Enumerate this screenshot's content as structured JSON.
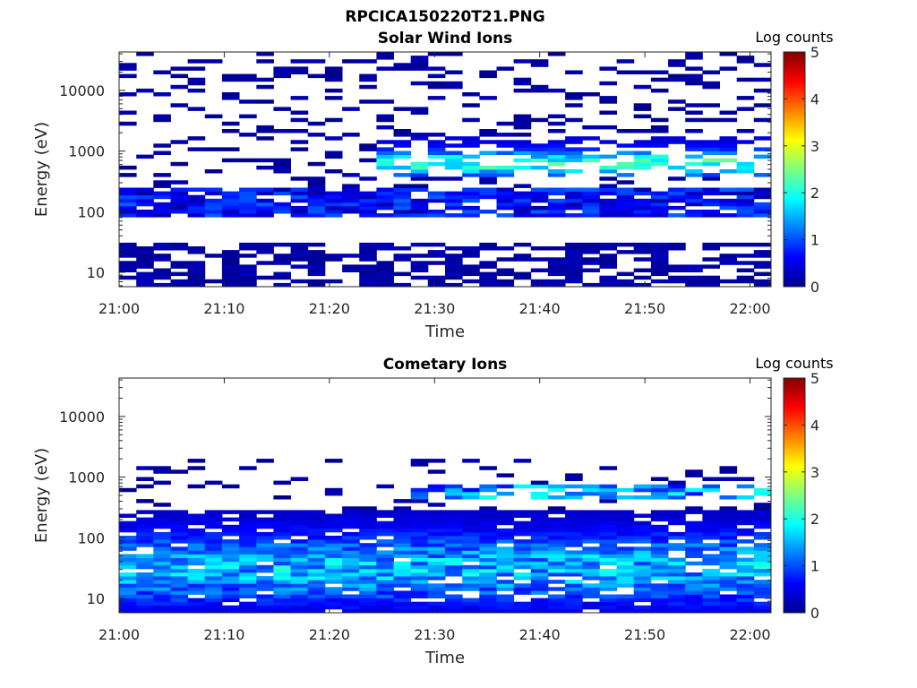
{
  "figure": {
    "title": "RPCICA150220T21.PNG"
  },
  "colormap": "jet",
  "chart_data": [
    {
      "type": "heatmap",
      "title": "Solar Wind Ions",
      "xlabel": "Time",
      "ylabel": "Energy (eV)",
      "x_ticks": [
        "21:00",
        "21:10",
        "21:20",
        "21:30",
        "21:40",
        "21:50",
        "22:00"
      ],
      "x_range_minutes": [
        0,
        62
      ],
      "y_scale": "log",
      "y_ticks": [
        "10",
        "100",
        "1000",
        "10000"
      ],
      "ylim": [
        5.8,
        43000
      ],
      "colorbar": {
        "label": "Log counts",
        "range": [
          0,
          5
        ],
        "ticks": [
          "0",
          "1",
          "2",
          "3",
          "4",
          "5"
        ]
      },
      "notes_per_time_block_minutes": 1.6,
      "features": [
        {
          "energy_range_eV": [
            8,
            30
          ],
          "level": 0.15,
          "description_extent": "low-energy band throughout"
        },
        {
          "energy_range_eV": [
            100,
            250
          ],
          "level": 0.6,
          "description_extent": "main solar wind band"
        },
        {
          "energy_range_eV": [
            400,
            1600
          ],
          "level_max": 2.4,
          "time_range": [
            "21:25",
            "22:00"
          ],
          "description_extent": "solar wind peak"
        }
      ]
    },
    {
      "type": "heatmap",
      "title": "Cometary Ions",
      "xlabel": "Time",
      "ylabel": "Energy (eV)",
      "x_ticks": [
        "21:00",
        "21:10",
        "21:20",
        "21:30",
        "21:40",
        "21:50",
        "22:00"
      ],
      "x_range_minutes": [
        0,
        62
      ],
      "y_scale": "log",
      "y_ticks": [
        "10",
        "100",
        "1000",
        "10000"
      ],
      "ylim": [
        5.8,
        43000
      ],
      "colorbar": {
        "label": "Log counts",
        "range": [
          0,
          5
        ],
        "ticks": [
          "0",
          "1",
          "2",
          "3",
          "4",
          "5"
        ]
      },
      "features": [
        {
          "energy_range_eV": [
            6,
            300
          ],
          "level_max": 2.0,
          "description_extent": "broad cometary ion population"
        },
        {
          "energy_range_eV": [
            450,
            750
          ],
          "level_max": 2.0,
          "time_range": [
            "21:28",
            "22:00"
          ],
          "description_extent": "upper band"
        }
      ]
    }
  ]
}
